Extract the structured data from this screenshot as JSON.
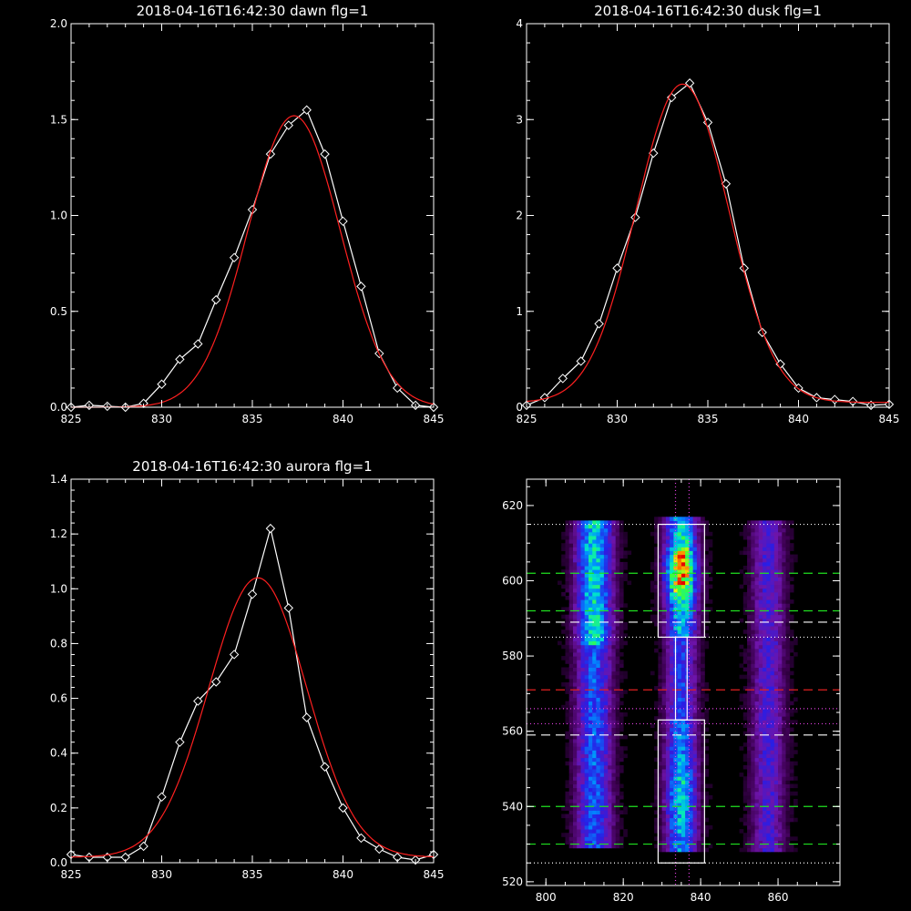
{
  "chart_data": [
    {
      "type": "line",
      "title": "2018-04-16T16:42:30 dawn flg=1",
      "xlim": [
        825,
        845
      ],
      "ylim": [
        0,
        2.0
      ],
      "xticks": [
        "825",
        "830",
        "835",
        "840",
        "845"
      ],
      "yticks": [
        "0.0",
        "0.5",
        "1.0",
        "1.5",
        "2.0"
      ],
      "series": [
        {
          "color": "#ffffff",
          "marker": "diamond",
          "x": [
            825,
            826,
            827,
            828,
            829,
            830,
            831,
            832,
            833,
            834,
            835,
            836,
            837,
            838,
            839,
            840,
            841,
            842,
            843,
            844,
            845
          ],
          "y": [
            0.0,
            0.01,
            0.005,
            0.0,
            0.02,
            0.12,
            0.25,
            0.33,
            0.56,
            0.78,
            1.03,
            1.32,
            1.47,
            1.55,
            1.32,
            0.97,
            0.63,
            0.28,
            0.1,
            0.01,
            0.0
          ]
        },
        {
          "color": "#ff2020",
          "marker": "none",
          "fit": {
            "peak": 1.52,
            "center": 837.3,
            "sigma": 2.55,
            "base": 0.0
          }
        }
      ]
    },
    {
      "type": "line",
      "title": "2018-04-16T16:42:30 dusk flg=1",
      "xlim": [
        825,
        845
      ],
      "ylim": [
        0,
        4
      ],
      "xticks": [
        "825",
        "830",
        "835",
        "840",
        "845"
      ],
      "yticks": [
        "0",
        "1",
        "2",
        "3",
        "4"
      ],
      "series": [
        {
          "color": "#ffffff",
          "marker": "diamond",
          "x": [
            825,
            826,
            827,
            828,
            829,
            830,
            831,
            832,
            833,
            834,
            835,
            836,
            837,
            838,
            839,
            840,
            841,
            842,
            843,
            844,
            845
          ],
          "y": [
            0.02,
            0.1,
            0.3,
            0.48,
            0.87,
            1.45,
            1.98,
            2.65,
            3.23,
            3.38,
            2.97,
            2.33,
            1.45,
            0.78,
            0.45,
            0.2,
            0.1,
            0.08,
            0.06,
            0.02,
            0.03
          ]
        },
        {
          "color": "#ff2020",
          "marker": "none",
          "fit": {
            "peak": 3.32,
            "center": 833.6,
            "sigma": 2.55,
            "base": 0.05
          }
        }
      ]
    },
    {
      "type": "line",
      "title": "2018-04-16T16:42:30 aurora flg=1",
      "xlim": [
        825,
        845
      ],
      "ylim": [
        0,
        1.4
      ],
      "xticks": [
        "825",
        "830",
        "835",
        "840",
        "845"
      ],
      "yticks": [
        "0.0",
        "0.2",
        "0.4",
        "0.6",
        "0.8",
        "1.0",
        "1.2",
        "1.4"
      ],
      "series": [
        {
          "color": "#ffffff",
          "marker": "diamond",
          "x": [
            825,
            826,
            827,
            828,
            829,
            830,
            831,
            832,
            833,
            834,
            835,
            836,
            837,
            838,
            839,
            840,
            841,
            842,
            843,
            844,
            845
          ],
          "y": [
            0.03,
            0.02,
            0.02,
            0.02,
            0.06,
            0.24,
            0.44,
            0.59,
            0.66,
            0.76,
            0.98,
            1.22,
            0.93,
            0.53,
            0.35,
            0.2,
            0.09,
            0.05,
            0.02,
            0.01,
            0.03
          ]
        },
        {
          "color": "#ff2020",
          "marker": "none",
          "fit": {
            "peak": 1.02,
            "center": 835.3,
            "sigma": 2.7,
            "base": 0.02
          }
        }
      ]
    },
    {
      "type": "heatmap",
      "title": "",
      "xlim": [
        795,
        876
      ],
      "ylim": [
        519,
        627
      ],
      "xticks": [
        "800",
        "820",
        "840",
        "860"
      ],
      "yticks": [
        "520",
        "540",
        "560",
        "580",
        "600",
        "620"
      ],
      "bands": [
        {
          "xc": 812.5,
          "width": 3.2,
          "ymin": 529,
          "ymax": 615,
          "gain": 0.55
        },
        {
          "xc": 835.0,
          "width": 2.8,
          "ymin": 528,
          "ymax": 616,
          "gain": 1.0
        },
        {
          "xc": 857.5,
          "width": 3.0,
          "ymin": 528,
          "ymax": 615,
          "gain": 0.28
        }
      ],
      "boxes": [
        {
          "x0": 829,
          "x1": 841,
          "y0": 585,
          "y1": 615
        },
        {
          "x0": 829,
          "x1": 841,
          "y0": 525,
          "y1": 563
        }
      ],
      "white_connector": {
        "x0": 833.5,
        "x1": 836.5,
        "y0": 563,
        "y1": 585
      },
      "hlines": [
        {
          "y": 602,
          "color": "#20e020",
          "style": "dashed"
        },
        {
          "y": 592,
          "color": "#20e020",
          "style": "dashed"
        },
        {
          "y": 589,
          "color": "#ffffff",
          "style": "dashed"
        },
        {
          "y": 571,
          "color": "#e02020",
          "style": "dashed"
        },
        {
          "y": 559,
          "color": "#ffffff",
          "style": "dashed"
        },
        {
          "y": 540,
          "color": "#20e020",
          "style": "dashed"
        },
        {
          "y": 530,
          "color": "#20e020",
          "style": "dashed"
        },
        {
          "y": 615,
          "color": "#ffffff",
          "style": "dotted"
        },
        {
          "y": 585,
          "color": "#ffffff",
          "style": "dotted"
        },
        {
          "y": 566,
          "color": "#e040e0",
          "style": "dotted"
        },
        {
          "y": 562,
          "color": "#e040e0",
          "style": "dotted"
        },
        {
          "y": 525,
          "color": "#ffffff",
          "style": "dotted"
        }
      ],
      "vlines": [
        {
          "x": 833.5,
          "color": "#e040e0",
          "style": "dotted"
        },
        {
          "x": 837.0,
          "color": "#e040e0",
          "style": "dotted"
        }
      ]
    }
  ]
}
